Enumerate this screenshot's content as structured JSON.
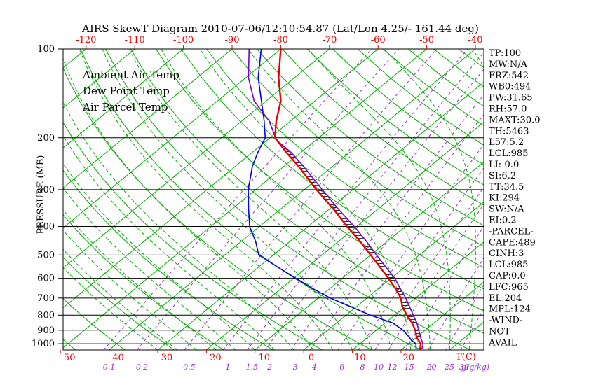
{
  "title": "AIRS SkewT Diagram 2010-07-06/12:10:54.87 (Lat/Lon 4.25/- 161.44 deg)",
  "colors": {
    "grid_green": "#00b000",
    "mixing_purple": "#9932cc",
    "axis_red": "#ee0000",
    "ambient_red": "#ee0000",
    "dewpoint_blue": "#0000ee",
    "parcel_purple": "#7a00cc",
    "frame_black": "#000000"
  },
  "stats_panel": {
    "lines": [
      "TP:100",
      "MW:N/A",
      "FRZ:542",
      "WB0:494",
      "PW:31.65",
      "RH:57.0",
      "MAXT:30.0",
      "TH:5463",
      "L57:5.2",
      "LCL:985",
      "LI:-0.0",
      "SI:6.2",
      "TT:34.5",
      "KI:294",
      "SW:N/A",
      "EI:0.2",
      "-PARCEL-",
      "CAPE:489",
      "CINH:3",
      "LCL:985",
      "CAP:0.0",
      "LFC:965",
      "EL:204",
      "MPL:124",
      "-WIND-",
      "NOT",
      "AVAIL"
    ]
  },
  "chart_data": {
    "type": "line",
    "variant": "skew-t-log-p",
    "title": "AIRS SkewT Diagram 2010-07-06/12:10:54.87 (Lat/Lon 4.25/- 161.44 deg)",
    "y_axis": {
      "label": "PRESSURE (MB)",
      "scale": "log",
      "range": [
        100,
        1050
      ],
      "ticks": [
        100,
        200,
        300,
        400,
        500,
        600,
        700,
        800,
        900,
        1000
      ]
    },
    "x_axis_top": {
      "units": "C",
      "ticks": [
        -120,
        -110,
        -100,
        -90,
        -80,
        -70,
        -60,
        -50,
        -40
      ]
    },
    "x_axis_bottom": {
      "label": "T(C)",
      "ticks": [
        -50,
        -40,
        -30,
        -20,
        -10,
        0,
        10,
        20
      ]
    },
    "mixing_ratio_axis": {
      "label": "g(g/kg)",
      "ticks": [
        0.1,
        0.2,
        0.5,
        1,
        1.5,
        2,
        3,
        4,
        6,
        8,
        10,
        12,
        15,
        20,
        25,
        30
      ]
    },
    "series": [
      {
        "name": "Ambient Air Temp",
        "color": "#ee0000",
        "width": 2.4,
        "points": [
          [
            1040,
            23.6
          ],
          [
            1000,
            22.5
          ],
          [
            975,
            21.2
          ],
          [
            950,
            20.0
          ],
          [
            925,
            19.0
          ],
          [
            900,
            18.0
          ],
          [
            850,
            15.5
          ],
          [
            800,
            12.5
          ],
          [
            750,
            9.5
          ],
          [
            700,
            7.0
          ],
          [
            650,
            3.5
          ],
          [
            600,
            -0.5
          ],
          [
            550,
            -5.0
          ],
          [
            500,
            -10.0
          ],
          [
            450,
            -15.5
          ],
          [
            400,
            -22.0
          ],
          [
            350,
            -29.0
          ],
          [
            300,
            -37.5
          ],
          [
            250,
            -47.0
          ],
          [
            225,
            -52.8
          ],
          [
            200,
            -59.0
          ],
          [
            175,
            -63.0
          ],
          [
            150,
            -67.0
          ],
          [
            125,
            -73.3
          ],
          [
            100,
            -80.0
          ]
        ]
      },
      {
        "name": "Dew Point Temp",
        "color": "#0000ee",
        "width": 1.6,
        "points": [
          [
            1040,
            22.8
          ],
          [
            1000,
            21.5
          ],
          [
            975,
            19.8
          ],
          [
            950,
            18.5
          ],
          [
            925,
            17.0
          ],
          [
            900,
            15.5
          ],
          [
            850,
            11.5
          ],
          [
            800,
            5.0
          ],
          [
            750,
            -1.0
          ],
          [
            700,
            -7.5
          ],
          [
            650,
            -13.5
          ],
          [
            600,
            -19.5
          ],
          [
            550,
            -26.0
          ],
          [
            500,
            -33.0
          ],
          [
            450,
            -37.0
          ],
          [
            400,
            -42.0
          ],
          [
            350,
            -46.5
          ],
          [
            300,
            -51.5
          ],
          [
            250,
            -56.5
          ],
          [
            225,
            -58.8
          ],
          [
            200,
            -61.0
          ],
          [
            175,
            -65.5
          ],
          [
            150,
            -71.0
          ],
          [
            125,
            -77.5
          ],
          [
            100,
            -84.0
          ]
        ]
      },
      {
        "name": "Air Parcel Temp",
        "color": "#7a00cc",
        "width": 1.6,
        "points": [
          [
            1040,
            24.0
          ],
          [
            1000,
            23.0
          ],
          [
            985,
            22.3
          ],
          [
            950,
            20.8
          ],
          [
            925,
            19.8
          ],
          [
            900,
            18.7
          ],
          [
            850,
            16.5
          ],
          [
            800,
            13.8
          ],
          [
            750,
            11.0
          ],
          [
            700,
            8.0
          ],
          [
            650,
            4.5
          ],
          [
            600,
            0.8
          ],
          [
            550,
            -3.8
          ],
          [
            500,
            -8.8
          ],
          [
            450,
            -14.2
          ],
          [
            400,
            -20.5
          ],
          [
            350,
            -28.0
          ],
          [
            300,
            -36.3
          ],
          [
            250,
            -46.0
          ],
          [
            225,
            -51.8
          ],
          [
            204,
            -58.0
          ],
          [
            175,
            -64.5
          ],
          [
            150,
            -72.5
          ],
          [
            125,
            -79.5
          ],
          [
            100,
            -86.5
          ]
        ]
      }
    ],
    "hatch_between": {
      "series_a": "Ambient Air Temp",
      "series_b": "Air Parcel Temp",
      "p_from": 962,
      "p_to": 204
    },
    "background_lines": {
      "isotherms": {
        "min": -130,
        "max": 40,
        "step": 10,
        "color": "#00b000"
      },
      "dry_adiabats": {
        "min": -50,
        "max": 180,
        "step": 10,
        "color": "#00b000"
      },
      "moist_adiabats": {
        "min": -30,
        "max": 38,
        "step": 4,
        "color": "#00b000",
        "dash": "5 3"
      },
      "mixing_ratio": {
        "color": "#9932cc",
        "dash": "4 4"
      }
    }
  }
}
